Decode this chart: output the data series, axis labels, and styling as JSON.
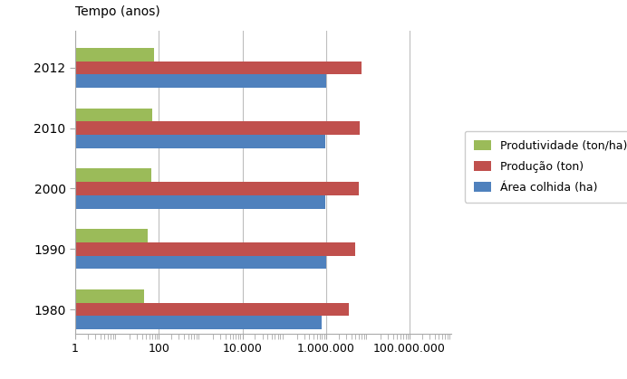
{
  "years": [
    "1980",
    "1990",
    "2000",
    "2010",
    "2012"
  ],
  "produtividade": [
    45,
    55,
    65,
    70,
    75
  ],
  "producao": [
    3500000,
    5000000,
    6000000,
    6500000,
    7000000
  ],
  "area_colhida": [
    800000,
    1000000,
    950000,
    970000,
    990000
  ],
  "colors": {
    "produtividade": "#9BBB59",
    "producao": "#C0504D",
    "area_colhida": "#4F81BD"
  },
  "title": "Tempo (anos)",
  "xlim_min": 1,
  "xlim_max": 1000000000,
  "xtick_labels": [
    "1",
    "100",
    "10.000",
    "1.000.000",
    "100.000.000"
  ],
  "xtick_values": [
    1,
    100,
    10000,
    1000000,
    100000000
  ],
  "legend_labels": [
    "Produtividade (ton/ha)",
    "Produção (ton)",
    "Área colhida (ha)"
  ],
  "bar_height": 0.22,
  "figsize": [
    6.92,
    4.19
  ],
  "dpi": 100,
  "background_color": "#FFFFFF",
  "text_color": "#000000",
  "grid_color": "#BEBEBE",
  "spine_color": "#AAAAAA"
}
